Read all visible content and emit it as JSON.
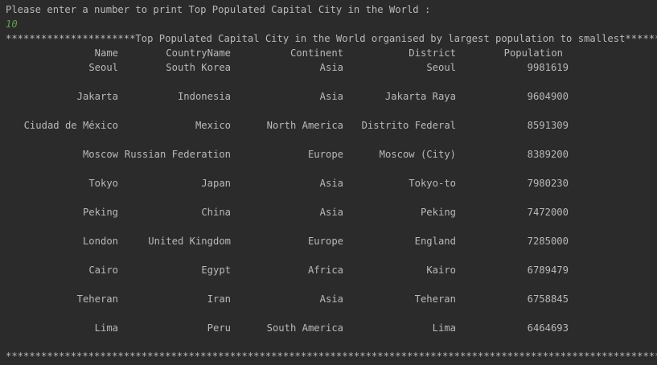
{
  "console": {
    "prompt": "Please enter a number to print Top Populated Capital City in the World :",
    "input": "10",
    "header_line": "**********************Top Populated Capital City in the World organised by largest population to smallest**********",
    "footer_line": "****************************************************************************************************************",
    "columns": {
      "name": "Name",
      "country": "CountryName",
      "continent": "Continent",
      "district": "District",
      "population": "Population"
    },
    "rows": [
      {
        "name": "Seoul",
        "country": "South Korea",
        "continent": "Asia",
        "district": "Seoul",
        "population": "9981619"
      },
      {
        "name": "Jakarta",
        "country": "Indonesia",
        "continent": "Asia",
        "district": "Jakarta Raya",
        "population": "9604900"
      },
      {
        "name": "Ciudad de México",
        "country": "Mexico",
        "continent": "North America",
        "district": "Distrito Federal",
        "population": "8591309"
      },
      {
        "name": "Moscow",
        "country": "Russian Federation",
        "continent": "Europe",
        "district": "Moscow (City)",
        "population": "8389200"
      },
      {
        "name": "Tokyo",
        "country": "Japan",
        "continent": "Asia",
        "district": "Tokyo-to",
        "population": "7980230"
      },
      {
        "name": "Peking",
        "country": "China",
        "continent": "Asia",
        "district": "Peking",
        "population": "7472000"
      },
      {
        "name": "London",
        "country": "United Kingdom",
        "continent": "Europe",
        "district": "England",
        "population": "7285000"
      },
      {
        "name": "Cairo",
        "country": "Egypt",
        "continent": "Africa",
        "district": "Kairo",
        "population": "6789479"
      },
      {
        "name": "Teheran",
        "country": "Iran",
        "continent": "Asia",
        "district": "Teheran",
        "population": "6758845"
      },
      {
        "name": "Lima",
        "country": "Peru",
        "continent": "South America",
        "district": "Lima",
        "population": "6464693"
      }
    ],
    "colors": {
      "background": "#2b2b2b",
      "text": "#b9b9b9",
      "user_input": "#58a34a"
    }
  }
}
